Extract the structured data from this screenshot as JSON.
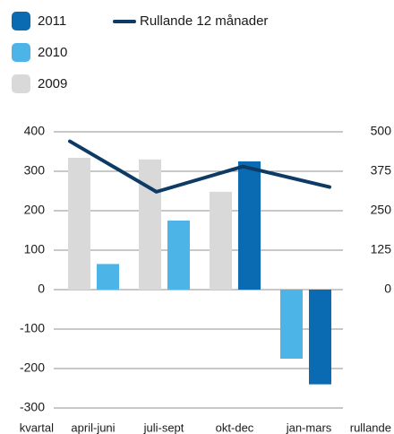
{
  "chart_data": {
    "type": "bar",
    "categories": [
      "april-juni",
      "juli-sept",
      "okt-dec",
      "jan-mars"
    ],
    "x_label_left": "kvartal",
    "x_label_right": "rullande",
    "series": [
      {
        "name": "2011",
        "color": "#0a6bb3",
        "values": [
          null,
          null,
          325,
          -240
        ]
      },
      {
        "name": "Rullande 12 månader",
        "color": "#0d3b66",
        "type": "line",
        "axis": "y2",
        "values": [
          470,
          310,
          390,
          325
        ]
      },
      {
        "name": "2010",
        "color": "#4db4e7",
        "values": [
          65,
          175,
          null,
          -175
        ]
      },
      {
        "name": "2009",
        "color": "#d9d9d9",
        "values": [
          334,
          330,
          248,
          null
        ]
      }
    ],
    "ylim": [
      -300,
      400
    ],
    "yticks": [
      -300,
      -200,
      -100,
      0,
      100,
      200,
      300,
      400
    ],
    "y2lim": [
      -375,
      500
    ],
    "y2ticks": [
      0,
      125,
      250,
      375,
      500
    ],
    "grid": true
  }
}
